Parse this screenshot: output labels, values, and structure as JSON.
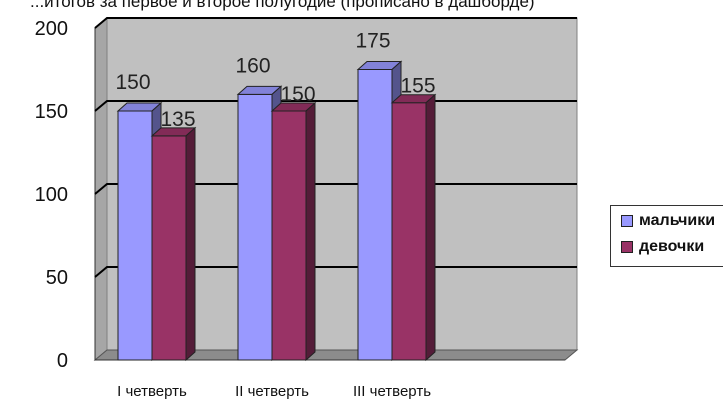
{
  "header": {
    "cut_text": "...итогов за первое и второе полугодие (прописано в дашборде)"
  },
  "colors": {
    "boys": "#9999ff",
    "girls": "#993366",
    "wall": "#c0c0c0",
    "gridline": "#000000"
  },
  "chart_data": {
    "type": "bar",
    "categories": [
      "I четверть",
      "II четверть",
      "III четверть"
    ],
    "series": [
      {
        "name": "мальчики",
        "values": [
          150,
          160,
          175
        ]
      },
      {
        "name": "девочки",
        "values": [
          135,
          150,
          155
        ]
      }
    ],
    "ylim": [
      0,
      200
    ],
    "yticks": [
      "0",
      "50",
      "100",
      "150",
      "200"
    ],
    "grid": true,
    "legend_position": "right",
    "title": "",
    "xlabel": "",
    "ylabel": ""
  }
}
